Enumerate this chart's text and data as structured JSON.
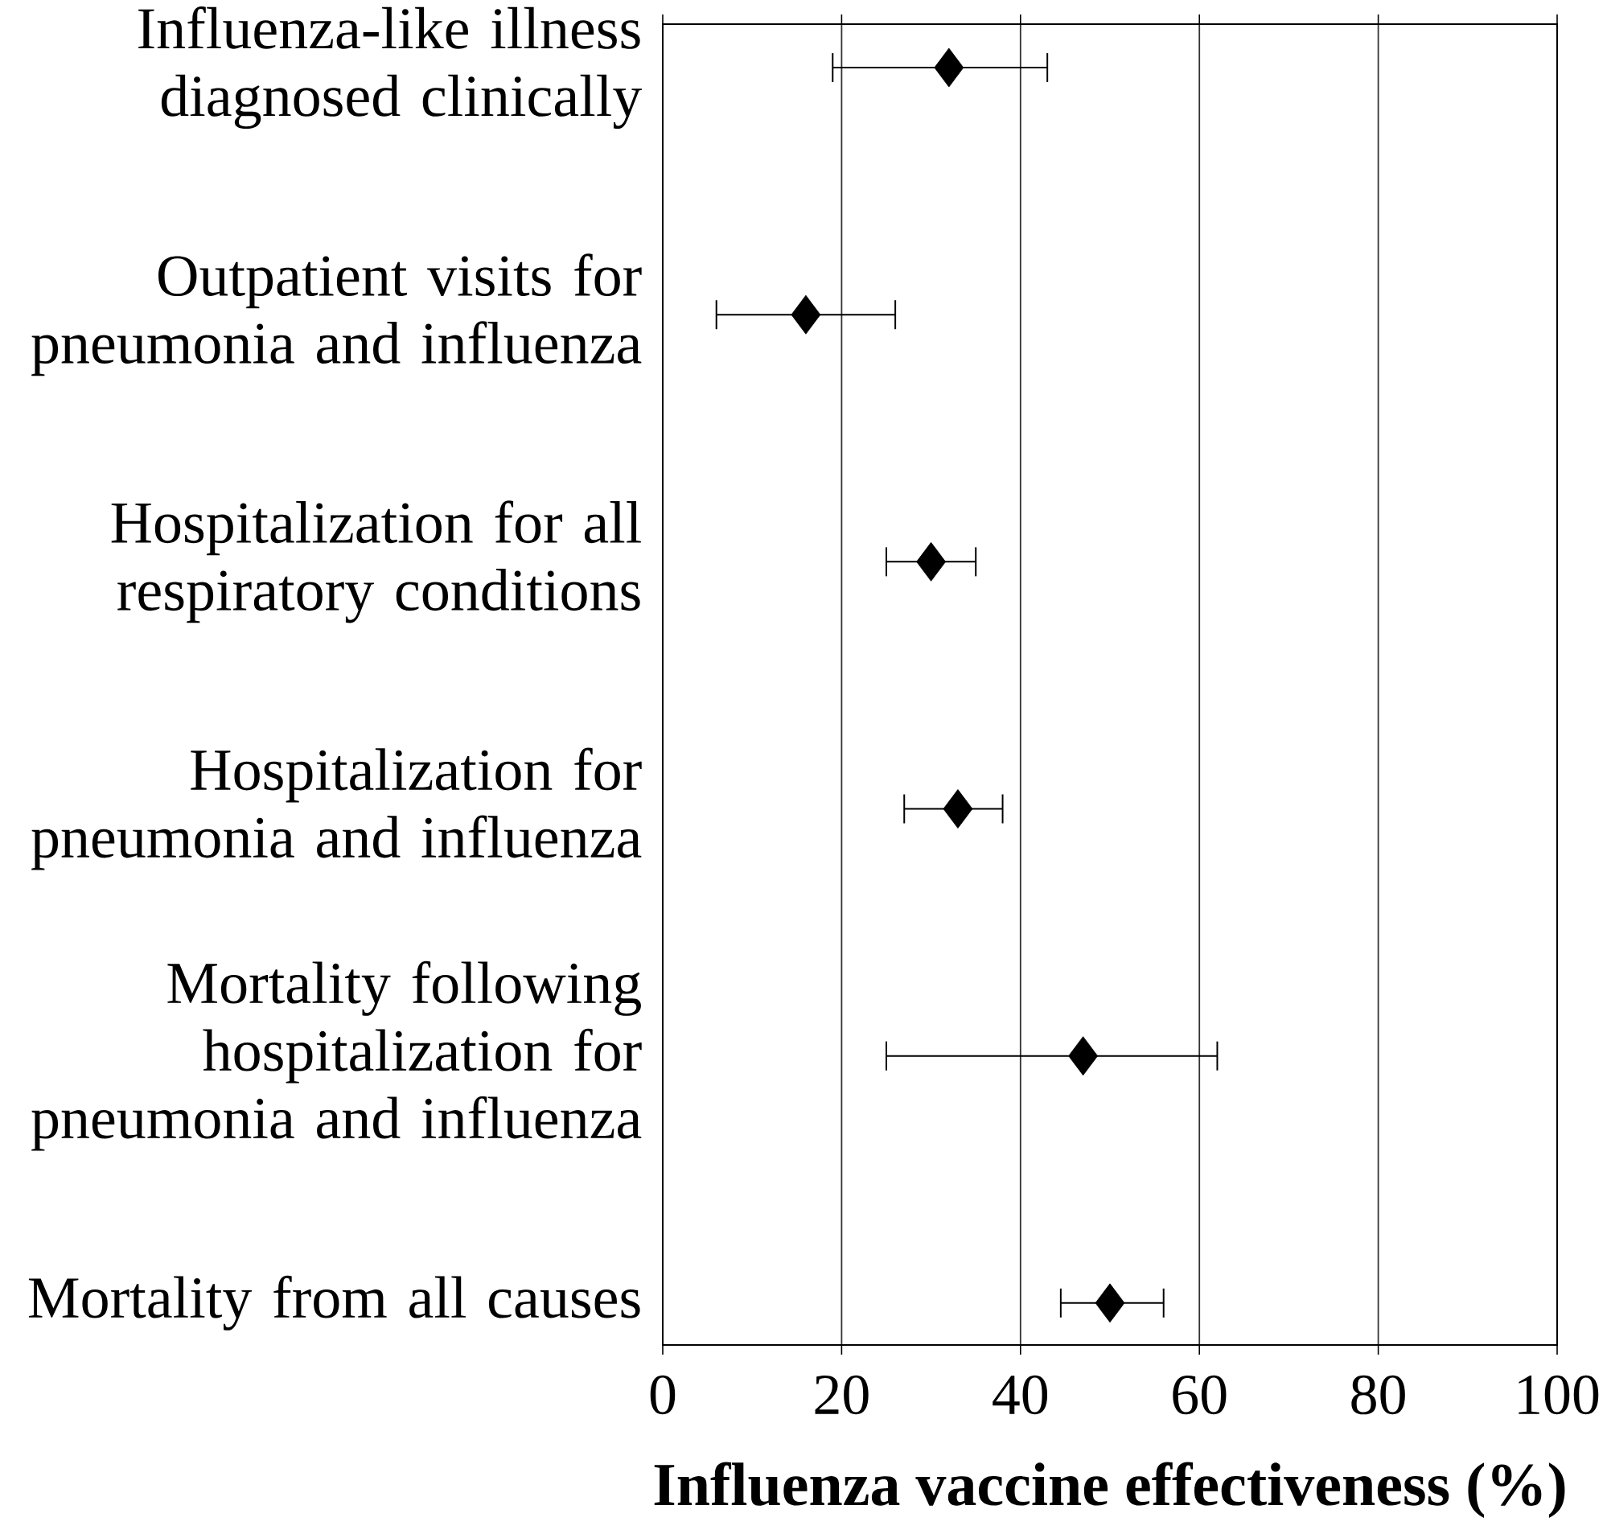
{
  "chart_data": {
    "type": "scatter",
    "orientation": "horizontal",
    "xlabel": "Influenza vaccine effectiveness (%)",
    "categories": [
      "Influenza-like illness diagnosed clinically",
      "Outpatient visits for pneumonia and influenza",
      "Hospitalization for all respiratory conditions",
      "Hospitalization for pneumonia and influenza",
      "Mortality following hospitalization for pneumonia and influenza",
      "Mortality from all causes"
    ],
    "values": [
      32,
      16,
      30,
      33,
      47,
      50
    ],
    "errors": [
      [
        19,
        43
      ],
      [
        6,
        26
      ],
      [
        25,
        35
      ],
      [
        27,
        38
      ],
      [
        25,
        62
      ],
      [
        44.5,
        56
      ]
    ],
    "color": "#000000",
    "marker": "diamond",
    "xlim": [
      0,
      100
    ],
    "xticks": [
      0,
      20,
      40,
      60,
      80,
      100
    ],
    "grid": "x"
  }
}
